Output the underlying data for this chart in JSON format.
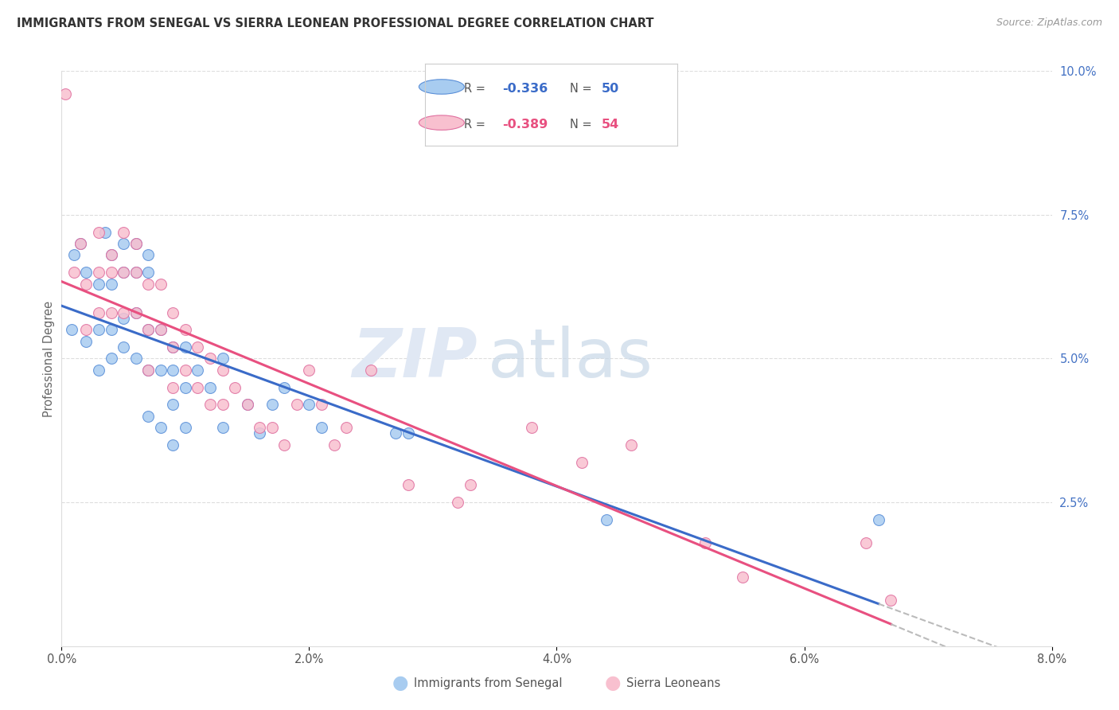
{
  "title": "IMMIGRANTS FROM SENEGAL VS SIERRA LEONEAN PROFESSIONAL DEGREE CORRELATION CHART",
  "source": "Source: ZipAtlas.com",
  "ylabel": "Professional Degree",
  "blue_color": "#A8CCF0",
  "pink_color": "#F8C0CF",
  "blue_line_color": "#3A6BC8",
  "pink_line_color": "#E85080",
  "blue_edge_color": "#5A8FD8",
  "pink_edge_color": "#E070A0",
  "watermark_zip": "ZIP",
  "watermark_atlas": "atlas",
  "xlim": [
    0.0,
    0.08
  ],
  "ylim": [
    0.0,
    0.1
  ],
  "senegal_x": [
    0.0008,
    0.001,
    0.0015,
    0.002,
    0.002,
    0.003,
    0.003,
    0.003,
    0.0035,
    0.004,
    0.004,
    0.004,
    0.004,
    0.005,
    0.005,
    0.005,
    0.005,
    0.006,
    0.006,
    0.006,
    0.006,
    0.007,
    0.007,
    0.007,
    0.007,
    0.007,
    0.008,
    0.008,
    0.008,
    0.009,
    0.009,
    0.009,
    0.009,
    0.01,
    0.01,
    0.01,
    0.011,
    0.012,
    0.013,
    0.013,
    0.015,
    0.016,
    0.017,
    0.018,
    0.02,
    0.021,
    0.027,
    0.028,
    0.044,
    0.066
  ],
  "senegal_y": [
    0.055,
    0.068,
    0.07,
    0.065,
    0.053,
    0.063,
    0.055,
    0.048,
    0.072,
    0.068,
    0.063,
    0.055,
    0.05,
    0.07,
    0.065,
    0.057,
    0.052,
    0.07,
    0.065,
    0.058,
    0.05,
    0.068,
    0.065,
    0.055,
    0.048,
    0.04,
    0.055,
    0.048,
    0.038,
    0.052,
    0.048,
    0.042,
    0.035,
    0.052,
    0.045,
    0.038,
    0.048,
    0.045,
    0.05,
    0.038,
    0.042,
    0.037,
    0.042,
    0.045,
    0.042,
    0.038,
    0.037,
    0.037,
    0.022,
    0.022
  ],
  "sierraleone_x": [
    0.0003,
    0.001,
    0.0015,
    0.002,
    0.002,
    0.003,
    0.003,
    0.003,
    0.004,
    0.004,
    0.004,
    0.005,
    0.005,
    0.005,
    0.006,
    0.006,
    0.006,
    0.007,
    0.007,
    0.007,
    0.008,
    0.008,
    0.009,
    0.009,
    0.009,
    0.01,
    0.01,
    0.011,
    0.011,
    0.012,
    0.012,
    0.013,
    0.013,
    0.014,
    0.015,
    0.016,
    0.017,
    0.018,
    0.019,
    0.02,
    0.021,
    0.022,
    0.023,
    0.025,
    0.028,
    0.032,
    0.033,
    0.038,
    0.042,
    0.046,
    0.052,
    0.055,
    0.065,
    0.067
  ],
  "sierraleone_y": [
    0.096,
    0.065,
    0.07,
    0.063,
    0.055,
    0.072,
    0.065,
    0.058,
    0.068,
    0.065,
    0.058,
    0.072,
    0.065,
    0.058,
    0.07,
    0.065,
    0.058,
    0.063,
    0.055,
    0.048,
    0.063,
    0.055,
    0.058,
    0.052,
    0.045,
    0.055,
    0.048,
    0.052,
    0.045,
    0.05,
    0.042,
    0.048,
    0.042,
    0.045,
    0.042,
    0.038,
    0.038,
    0.035,
    0.042,
    0.048,
    0.042,
    0.035,
    0.038,
    0.048,
    0.028,
    0.025,
    0.028,
    0.038,
    0.032,
    0.035,
    0.018,
    0.012,
    0.018,
    0.008
  ]
}
